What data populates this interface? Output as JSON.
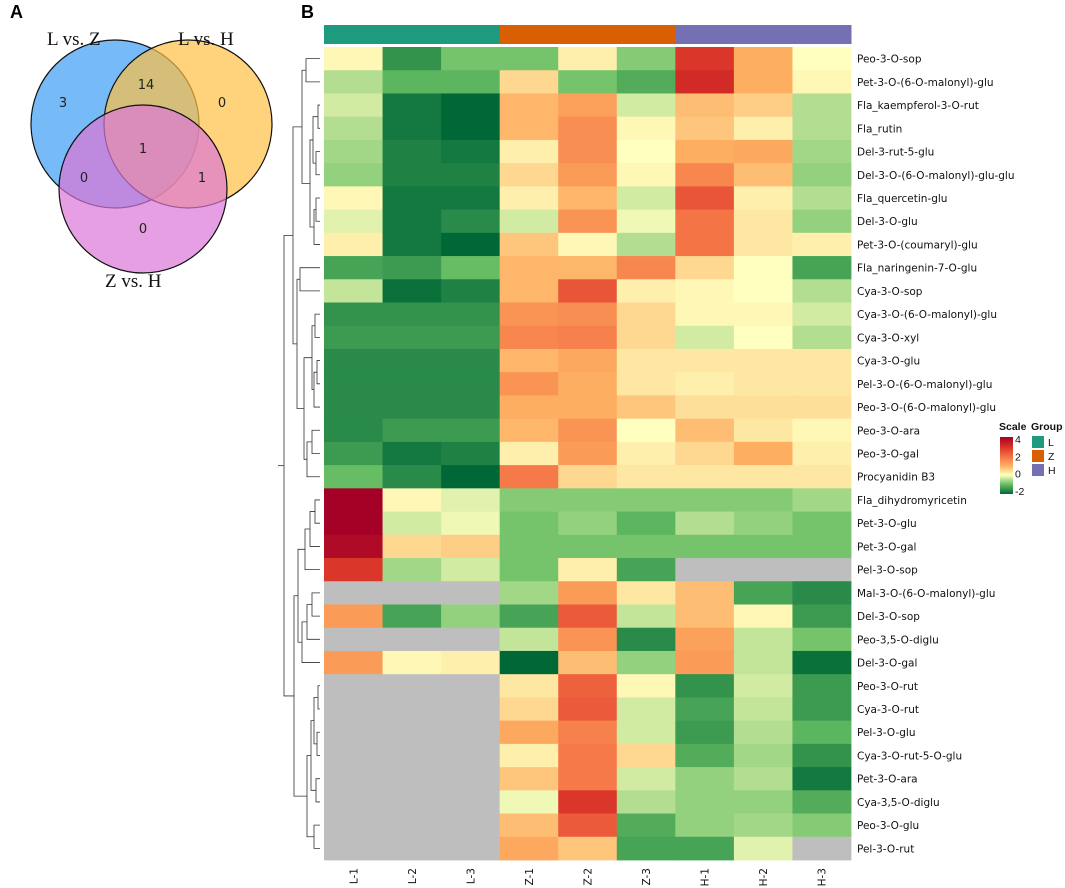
{
  "panel_a": {
    "letter": "A",
    "sets": [
      {
        "name": "L vs. Z",
        "color": "#3d9df5"
      },
      {
        "name": "L vs. H",
        "color": "#fdc145"
      },
      {
        "name": "Z vs. H",
        "color": "#dc76d6"
      }
    ],
    "counts": {
      "only_LZ": "3",
      "LZ_LH": "14",
      "only_LH": "0",
      "all": "1",
      "LZ_ZH": "0",
      "LH_ZH": "1",
      "only_ZH": "0"
    }
  },
  "panel_b": {
    "letter": "B",
    "legend": {
      "scale_title": "Scale",
      "group_title": "Group",
      "scale_ticks": [
        "4",
        "2",
        "0",
        "-2"
      ],
      "groups": [
        {
          "name": "L",
          "color": "#1e9b7e"
        },
        {
          "name": "Z",
          "color": "#d95f05"
        },
        {
          "name": "H",
          "color": "#7570b3"
        }
      ]
    }
  },
  "chart_data": {
    "type": "heatmap",
    "title": "",
    "color_scale": {
      "min": -2,
      "max": 4,
      "ticks": [
        4,
        2,
        0,
        -2
      ],
      "na_color": "#bebebe"
    },
    "columns": [
      "L-1",
      "L-2",
      "L-3",
      "Z-1",
      "Z-2",
      "Z-3",
      "H-1",
      "H-2",
      "H-3"
    ],
    "column_groups": [
      "L",
      "L",
      "L",
      "Z",
      "Z",
      "Z",
      "H",
      "H",
      "H"
    ],
    "rows": [
      "Peo-3-O-sop",
      "Pet-3-O-(6-O-malonyl)-glu",
      "Fla_kaempferol-3-O-rut",
      "Fla_rutin",
      "Del-3-rut-5-glu",
      "Del-3-O-(6-O-malonyl)-glu-glu",
      "Fla_quercetin-glu",
      "Del-3-O-glu",
      "Pet-3-O-(coumaryl)-glu",
      "Fla_naringenin-7-O-glu",
      "Cya-3-O-sop",
      "Cya-3-O-(6-O-malonyl)-glu",
      "Cya-3-O-xyl",
      "Cya-3-O-glu",
      "Pel-3-O-(6-O-malonyl)-glu",
      "Peo-3-O-(6-O-malonyl)-glu",
      "Peo-3-O-ara",
      "Peo-3-O-gal",
      "Procyanidin B3",
      "Fla_dihydromyricetin",
      "Pet-3-O-glu",
      "Pet-3-O-gal",
      "Pel-3-O-sop",
      "Mal-3-O-(6-O-malonyl)-glu",
      "Del-3-O-sop",
      "Peo-3,5-O-diglu",
      "Del-3-O-gal",
      "Peo-3-O-rut",
      "Cya-3-O-rut",
      "Pel-3-O-glu",
      "Cya-3-O-rut-5-O-glu",
      "Pet-3-O-ara",
      "Cya-3,5-O-diglu",
      "Peo-3-O-glu",
      "Pel-3-O-rut"
    ],
    "values": [
      [
        0.1,
        -1.5,
        -0.9,
        -0.9,
        0.2,
        -0.8,
        2.9,
        1.0,
        0.0
      ],
      [
        -0.5,
        -1.1,
        -1.1,
        0.5,
        -0.9,
        -1.2,
        3.1,
        1.0,
        0.1
      ],
      [
        -0.3,
        -1.8,
        -2.2,
        0.9,
        1.2,
        -0.3,
        0.8,
        0.6,
        -0.5
      ],
      [
        -0.5,
        -1.8,
        -2.0,
        0.9,
        1.5,
        0.1,
        0.7,
        0.2,
        -0.5
      ],
      [
        -0.6,
        -1.7,
        -1.8,
        0.2,
        1.5,
        0.0,
        1.0,
        1.1,
        -0.6
      ],
      [
        -0.7,
        -1.7,
        -1.7,
        0.5,
        1.3,
        0.1,
        1.6,
        0.8,
        -0.7
      ],
      [
        0.1,
        -1.8,
        -1.8,
        0.2,
        0.9,
        -0.3,
        2.4,
        0.2,
        -0.5
      ],
      [
        -0.2,
        -1.8,
        -1.6,
        -0.3,
        1.4,
        -0.1,
        1.9,
        0.3,
        -0.7
      ],
      [
        0.2,
        -1.8,
        -2.2,
        0.7,
        0.1,
        -0.5,
        1.9,
        0.3,
        0.2
      ],
      [
        -1.3,
        -1.4,
        -1.0,
        0.9,
        0.9,
        1.6,
        0.5,
        0.0,
        -1.3
      ],
      [
        -0.4,
        -1.9,
        -1.7,
        0.9,
        2.4,
        0.2,
        0.1,
        0.0,
        -0.5
      ],
      [
        -1.5,
        -1.5,
        -1.5,
        1.4,
        1.5,
        0.5,
        0.1,
        0.1,
        -0.3
      ],
      [
        -1.4,
        -1.4,
        -1.4,
        1.6,
        1.7,
        0.5,
        -0.3,
        0.0,
        -0.5
      ],
      [
        -1.6,
        -1.6,
        -1.6,
        0.9,
        1.1,
        0.3,
        0.3,
        0.3,
        0.3
      ],
      [
        -1.6,
        -1.6,
        -1.6,
        1.4,
        1.0,
        0.3,
        0.2,
        0.3,
        0.3
      ],
      [
        -1.6,
        -1.6,
        -1.6,
        1.0,
        1.0,
        0.7,
        0.4,
        0.4,
        0.4
      ],
      [
        -1.6,
        -1.4,
        -1.4,
        0.9,
        1.4,
        0.0,
        0.8,
        0.3,
        0.1
      ],
      [
        -1.4,
        -1.8,
        -1.7,
        0.2,
        1.3,
        0.2,
        0.5,
        1.0,
        0.2
      ],
      [
        -1.0,
        -1.6,
        -2.2,
        1.8,
        0.5,
        0.3,
        0.3,
        0.3,
        0.3
      ],
      [
        4.0,
        0.1,
        -0.2,
        -0.8,
        -0.8,
        -0.8,
        -0.8,
        -0.8,
        -0.6
      ],
      [
        4.0,
        -0.3,
        -0.1,
        -0.9,
        -0.7,
        -1.1,
        -0.5,
        -0.7,
        -0.9
      ],
      [
        3.8,
        0.5,
        0.6,
        -0.9,
        -0.9,
        -0.9,
        -0.9,
        -0.9,
        -0.9
      ],
      [
        2.9,
        -0.6,
        -0.3,
        -0.9,
        0.2,
        -1.3,
        null,
        null,
        null
      ],
      [
        null,
        null,
        null,
        -0.6,
        1.3,
        0.3,
        0.8,
        -1.3,
        -1.6
      ],
      [
        1.3,
        -1.3,
        -0.7,
        -1.3,
        2.3,
        -0.4,
        0.8,
        0.1,
        -1.4
      ],
      [
        null,
        null,
        null,
        -0.4,
        1.4,
        -1.6,
        1.2,
        -0.4,
        -0.9
      ],
      [
        1.3,
        0.1,
        0.2,
        -2.0,
        0.8,
        -0.7,
        1.3,
        -0.4,
        -1.9
      ],
      [
        null,
        null,
        null,
        0.3,
        2.2,
        0.1,
        -1.5,
        -0.3,
        -1.4
      ],
      [
        null,
        null,
        null,
        0.5,
        2.3,
        -0.3,
        -1.3,
        -0.4,
        -1.4
      ],
      [
        null,
        null,
        null,
        1.1,
        1.7,
        -0.3,
        -1.4,
        -0.5,
        -1.1
      ],
      [
        null,
        null,
        null,
        0.2,
        1.8,
        0.5,
        -1.2,
        -0.6,
        -1.5
      ],
      [
        null,
        null,
        null,
        0.7,
        1.8,
        -0.3,
        -0.7,
        -0.5,
        -1.8
      ],
      [
        null,
        null,
        null,
        -0.1,
        2.9,
        -0.5,
        -0.7,
        -0.7,
        -1.2
      ],
      [
        null,
        null,
        null,
        0.8,
        2.3,
        -1.2,
        -0.7,
        -0.6,
        -0.8
      ],
      [
        null,
        null,
        null,
        1.1,
        0.7,
        -1.3,
        -1.3,
        -0.2,
        null
      ]
    ],
    "dendrogram": "hierarchical clustering of rows (left side)"
  }
}
